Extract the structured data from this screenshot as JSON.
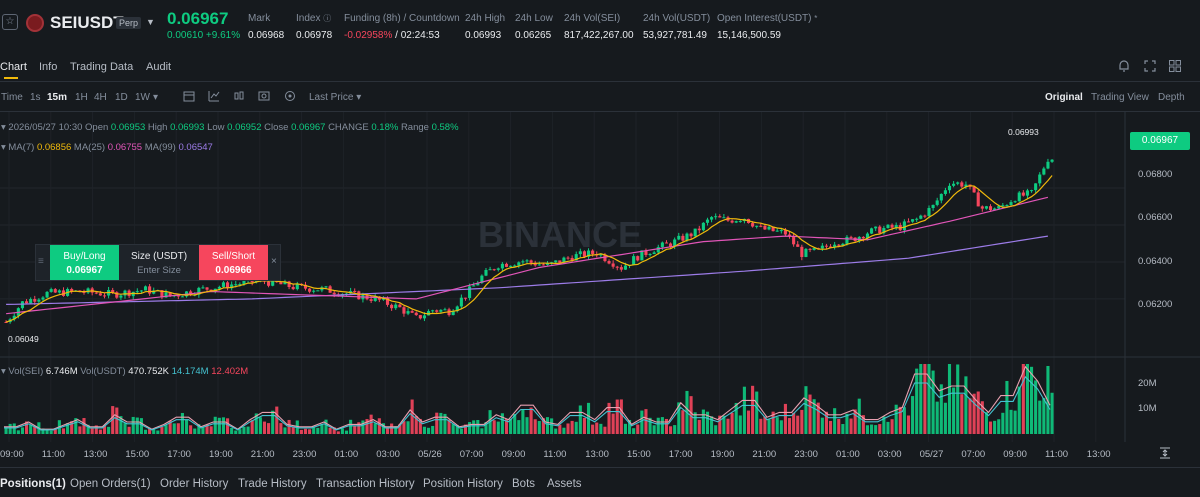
{
  "header": {
    "symbol": "SEIUSDT",
    "contract_badge": "Perp",
    "last_price": "0.06967",
    "change": "0.00610 +9.61%",
    "stats": [
      {
        "label": "Mark",
        "value": "0.06968"
      },
      {
        "label": "Index",
        "value": "0.06978"
      },
      {
        "label": "Funding (8h) / Countdown",
        "value_rate": "-0.02958%",
        "value_countdown": "/ 02:24:53"
      },
      {
        "label": "24h High",
        "value": "0.06993"
      },
      {
        "label": "24h Low",
        "value": "0.06265"
      },
      {
        "label": "24h Vol(SEI)",
        "value": "817,422,267.00"
      },
      {
        "label": "24h Vol(USDT)",
        "value": "53,927,781.49"
      },
      {
        "label": "Open Interest(USDT)",
        "value": "15,146,500.59"
      }
    ]
  },
  "tabs": [
    "Chart",
    "Info",
    "Trading Data",
    "Audit"
  ],
  "toolbar": {
    "intervals": [
      "Time",
      "1s",
      "15m",
      "1H",
      "4H",
      "1D",
      "1W"
    ],
    "active_interval": "15m",
    "price_type": "Last Price",
    "views": [
      "Original",
      "Trading View",
      "Depth"
    ],
    "active_view": "Original"
  },
  "ohlc": {
    "datetime": "2026/05/27 10:30",
    "open_label": "Open",
    "open": "0.06953",
    "high_label": "High",
    "high": "0.06993",
    "low_label": "Low",
    "low": "0.06952",
    "close_label": "Close",
    "close": "0.06967",
    "change_label": "CHANGE",
    "change": "0.18%",
    "range_label": "Range",
    "range": "0.58%"
  },
  "ma": {
    "ma7_label": "MA(7)",
    "ma7": "0.06856",
    "ma25_label": "MA(25)",
    "ma25": "0.06755",
    "ma99_label": "MA(99)",
    "ma99": "0.06547"
  },
  "trade": {
    "buy_label": "Buy/Long",
    "buy_price": "0.06967",
    "size_label": "Size (USDT)",
    "size_placeholder": "Enter Size",
    "sell_label": "Sell/Short",
    "sell_price": "0.06966"
  },
  "volume": {
    "sei_label": "Vol(SEI)",
    "sei_value": "6.746M",
    "usdt_label": "Vol(USDT)",
    "usdt_value": "470.752K",
    "ma_a": "14.174M",
    "ma_b": "12.402M"
  },
  "watermark": "BINANCE",
  "high_marker": "0.06993",
  "low_marker": "0.06049",
  "current_price_tag": "0.06967",
  "bottom_tabs": [
    "Positions(1)",
    "Open Orders(1)",
    "Order History",
    "Trade History",
    "Transaction History",
    "Position History",
    "Bots",
    "Assets"
  ],
  "colors": {
    "up": "#0ecb81",
    "down": "#f6465d",
    "ma7": "#f0b90b",
    "ma25": "#e155b8",
    "ma99": "#9c7ce8",
    "accent": "#f0b90b"
  },
  "chart_data": {
    "type": "candlestick",
    "y_ticks": [
      "0.06800",
      "0.06600",
      "0.06400",
      "0.06200"
    ],
    "vol_ticks": [
      "20M",
      "10M"
    ],
    "x_ticks": [
      "09:00",
      "11:00",
      "13:00",
      "15:00",
      "17:00",
      "19:00",
      "21:00",
      "23:00",
      "01:00",
      "03:00",
      "05/26",
      "07:00",
      "09:00",
      "11:00",
      "13:00",
      "15:00",
      "17:00",
      "19:00",
      "21:00",
      "23:00",
      "01:00",
      "03:00",
      "05/27",
      "07:00",
      "09:00",
      "11:00",
      "13:00"
    ],
    "ylim": [
      0.0601,
      0.0706
    ],
    "close_path": [
      [
        0,
        0.06075
      ],
      [
        4,
        0.0618
      ],
      [
        10,
        0.0623
      ],
      [
        18,
        0.0624
      ],
      [
        26,
        0.06225
      ],
      [
        34,
        0.0625
      ],
      [
        40,
        0.06215
      ],
      [
        46,
        0.06245
      ],
      [
        54,
        0.06275
      ],
      [
        62,
        0.063
      ],
      [
        70,
        0.06265
      ],
      [
        78,
        0.0625
      ],
      [
        84,
        0.06225
      ],
      [
        90,
        0.062
      ],
      [
        96,
        0.0615
      ],
      [
        100,
        0.06095
      ],
      [
        104,
        0.0614
      ],
      [
        108,
        0.06135
      ],
      [
        112,
        0.0622
      ],
      [
        116,
        0.0632
      ],
      [
        120,
        0.06385
      ],
      [
        126,
        0.06405
      ],
      [
        132,
        0.0638
      ],
      [
        138,
        0.0643
      ],
      [
        144,
        0.0645
      ],
      [
        150,
        0.0637
      ],
      [
        154,
        0.0643
      ],
      [
        158,
        0.0647
      ],
      [
        162,
        0.065
      ],
      [
        168,
        0.0656
      ],
      [
        172,
        0.0664
      ],
      [
        176,
        0.06625
      ],
      [
        180,
        0.0664
      ],
      [
        184,
        0.0658
      ],
      [
        190,
        0.06555
      ],
      [
        194,
        0.06445
      ],
      [
        198,
        0.0646
      ],
      [
        202,
        0.0651
      ],
      [
        206,
        0.0652
      ],
      [
        210,
        0.0656
      ],
      [
        214,
        0.0658
      ],
      [
        218,
        0.0659
      ],
      [
        222,
        0.0663
      ],
      [
        226,
        0.067
      ],
      [
        230,
        0.0683
      ],
      [
        234,
        0.0682
      ],
      [
        238,
        0.0669
      ],
      [
        242,
        0.0669
      ],
      [
        246,
        0.0675
      ],
      [
        250,
        0.0677
      ],
      [
        254,
        0.0696
      ]
    ],
    "ma99": [
      [
        0,
        0.0617
      ],
      [
        60,
        0.062
      ],
      [
        120,
        0.0626
      ],
      [
        180,
        0.0635
      ],
      [
        220,
        0.0642
      ],
      [
        254,
        0.0654
      ]
    ],
    "ma25": [
      [
        0,
        0.0612
      ],
      [
        50,
        0.0624
      ],
      [
        100,
        0.062
      ],
      [
        130,
        0.0637
      ],
      [
        170,
        0.0651
      ],
      [
        190,
        0.0654
      ],
      [
        210,
        0.0652
      ],
      [
        230,
        0.0662
      ],
      [
        254,
        0.0675
      ]
    ],
    "volume_values_m": [
      3,
      5,
      2,
      4,
      6,
      3,
      8,
      5,
      2,
      4,
      7,
      3,
      5,
      2,
      6,
      9,
      4,
      3,
      5,
      2,
      4,
      6,
      3,
      10,
      5,
      7,
      3,
      4,
      8,
      6,
      12,
      5,
      4,
      9,
      6,
      11,
      4,
      7,
      5,
      13,
      8,
      6,
      10,
      14,
      7,
      9,
      15,
      12,
      8,
      10,
      6,
      9,
      11,
      25,
      18,
      20,
      14,
      9,
      16,
      28,
      22,
      12
    ]
  }
}
